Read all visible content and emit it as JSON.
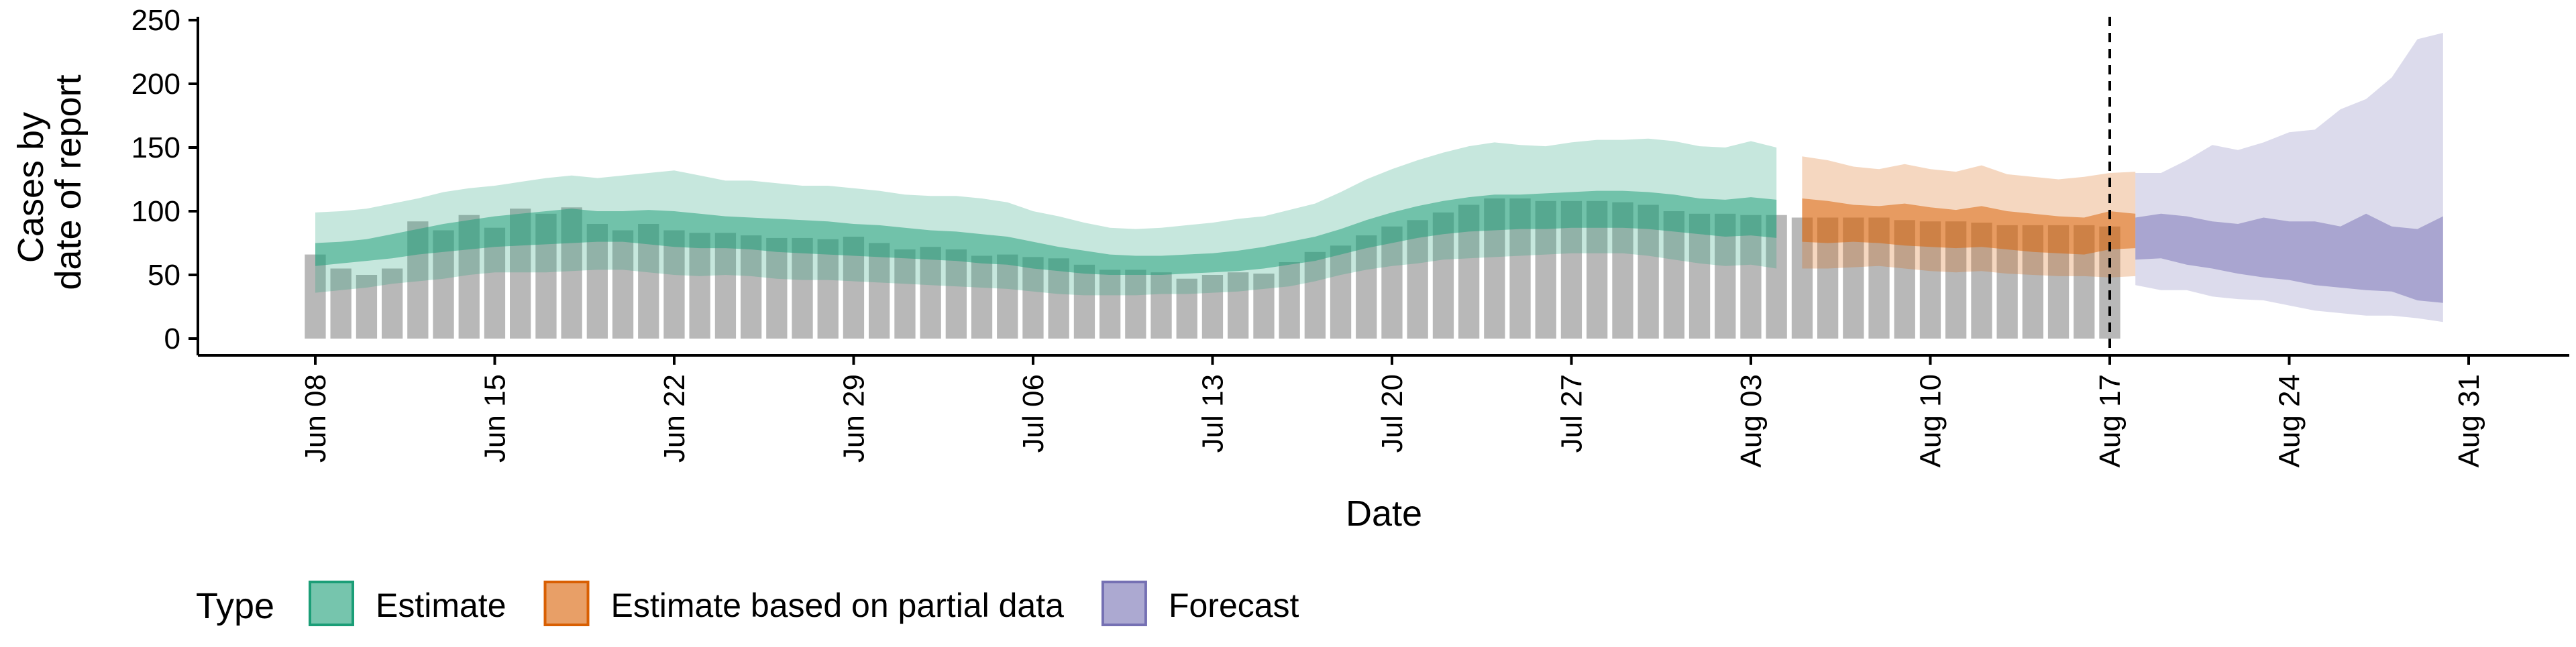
{
  "chart_data": {
    "type": "area",
    "xlabel": "Date",
    "ylabel_lines": [
      "Cases by",
      "date of report"
    ],
    "ylim": [
      0,
      250
    ],
    "y_ticks": [
      0,
      50,
      100,
      150,
      200,
      250
    ],
    "grid": false,
    "x_domain": [
      "2021-06-08",
      "2021-08-31"
    ],
    "x_ticks": [
      {
        "date": "2021-06-08",
        "label": "Jun 08"
      },
      {
        "date": "2021-06-15",
        "label": "Jun 15"
      },
      {
        "date": "2021-06-22",
        "label": "Jun 22"
      },
      {
        "date": "2021-06-29",
        "label": "Jun 29"
      },
      {
        "date": "2021-07-06",
        "label": "Jul 06"
      },
      {
        "date": "2021-07-13",
        "label": "Jul 13"
      },
      {
        "date": "2021-07-20",
        "label": "Jul 20"
      },
      {
        "date": "2021-07-27",
        "label": "Jul 27"
      },
      {
        "date": "2021-08-03",
        "label": "Aug 03"
      },
      {
        "date": "2021-08-10",
        "label": "Aug 10"
      },
      {
        "date": "2021-08-17",
        "label": "Aug 17"
      },
      {
        "date": "2021-08-24",
        "label": "Aug 24"
      },
      {
        "date": "2021-08-31",
        "label": "Aug 31"
      }
    ],
    "vline_date": "2021-08-17",
    "reported_cases": {
      "start_date": "2021-06-08",
      "values": [
        66,
        55,
        50,
        55,
        92,
        85,
        97,
        87,
        102,
        98,
        103,
        90,
        85,
        90,
        85,
        83,
        83,
        81,
        79,
        79,
        78,
        80,
        75,
        70,
        72,
        70,
        65,
        66,
        64,
        63,
        58,
        54,
        54,
        52,
        47,
        50,
        52,
        51,
        60,
        68,
        73,
        81,
        88,
        93,
        99,
        105,
        110,
        110,
        108,
        108,
        108,
        107,
        105,
        100,
        98,
        98,
        97,
        97,
        95,
        95,
        95,
        95,
        93,
        92,
        92,
        91,
        89,
        89,
        89,
        89,
        88
      ]
    },
    "series": [
      {
        "name": "Estimate",
        "type_key": "estimate",
        "start_date": "2021-06-08",
        "outer_upper": [
          99,
          100,
          102,
          106,
          110,
          115,
          118,
          120,
          123,
          126,
          128,
          126,
          128,
          130,
          132,
          128,
          124,
          124,
          122,
          120,
          120,
          118,
          116,
          113,
          112,
          112,
          110,
          107,
          100,
          96,
          91,
          87,
          86,
          87,
          89,
          91,
          94,
          96,
          101,
          106,
          115,
          125,
          133,
          140,
          146,
          151,
          154,
          152,
          151,
          154,
          156,
          156,
          157,
          155,
          151,
          150,
          155,
          150
        ],
        "outer_lower": [
          36,
          38,
          40,
          43,
          45,
          47,
          50,
          52,
          52,
          52,
          53,
          54,
          54,
          52,
          50,
          49,
          50,
          49,
          47,
          46,
          46,
          45,
          44,
          43,
          42,
          41,
          40,
          39,
          37,
          35,
          34,
          34,
          34,
          35,
          35,
          36,
          37,
          39,
          41,
          45,
          50,
          54,
          57,
          59,
          62,
          63,
          64,
          65,
          66,
          67,
          67,
          67,
          65,
          62,
          59,
          57,
          58,
          55
        ],
        "inner_upper": [
          75,
          76,
          78,
          82,
          86,
          90,
          93,
          96,
          98,
          100,
          102,
          100,
          100,
          101,
          100,
          98,
          96,
          95,
          94,
          93,
          92,
          90,
          89,
          87,
          85,
          84,
          82,
          80,
          76,
          72,
          69,
          66,
          65,
          65,
          66,
          67,
          69,
          72,
          76,
          80,
          86,
          93,
          99,
          104,
          108,
          111,
          113,
          113,
          114,
          115,
          116,
          116,
          115,
          113,
          110,
          109,
          111,
          109
        ],
        "inner_lower": [
          57,
          59,
          61,
          63,
          66,
          68,
          70,
          72,
          73,
          74,
          75,
          76,
          76,
          74,
          72,
          71,
          71,
          70,
          68,
          67,
          66,
          65,
          64,
          63,
          62,
          61,
          59,
          58,
          55,
          53,
          51,
          50,
          50,
          50,
          51,
          52,
          53,
          55,
          58,
          61,
          66,
          71,
          75,
          79,
          82,
          84,
          85,
          86,
          86,
          87,
          87,
          87,
          86,
          84,
          82,
          80,
          81,
          79
        ]
      },
      {
        "name": "Estimate based on partial data",
        "type_key": "partial",
        "start_date": "2021-08-05",
        "outer_upper": [
          143,
          140,
          135,
          133,
          137,
          133,
          131,
          136,
          129,
          127,
          125,
          127,
          130,
          131
        ],
        "outer_lower": [
          55,
          55,
          56,
          57,
          55,
          53,
          52,
          53,
          51,
          50,
          49,
          49,
          48,
          49
        ],
        "inner_upper": [
          110,
          108,
          105,
          104,
          106,
          103,
          101,
          104,
          100,
          98,
          96,
          95,
          100,
          98
        ],
        "inner_lower": [
          76,
          75,
          76,
          75,
          73,
          72,
          71,
          72,
          70,
          68,
          67,
          66,
          70,
          71
        ]
      },
      {
        "name": "Forecast",
        "type_key": "forecast",
        "start_date": "2021-08-18",
        "outer_upper": [
          130,
          130,
          140,
          152,
          148,
          154,
          162,
          164,
          180,
          188,
          205,
          235,
          240
        ],
        "outer_lower": [
          42,
          38,
          38,
          33,
          31,
          30,
          26,
          22,
          20,
          18,
          18,
          16,
          13
        ],
        "inner_upper": [
          95,
          98,
          96,
          92,
          90,
          95,
          92,
          92,
          88,
          98,
          88,
          86,
          96
        ],
        "inner_lower": [
          62,
          63,
          58,
          55,
          51,
          48,
          46,
          42,
          40,
          38,
          37,
          30,
          28
        ]
      }
    ],
    "legend": {
      "title": "Type",
      "position": "bottom",
      "items": [
        {
          "label": "Estimate",
          "type_key": "estimate"
        },
        {
          "label": "Estimate based on partial data",
          "type_key": "partial"
        },
        {
          "label": "Forecast",
          "type_key": "forecast"
        }
      ]
    },
    "colors": {
      "estimate": "#1b9e77",
      "partial": "#d95f02",
      "forecast": "#7570b3",
      "bars": "#b8b8b8",
      "vline": "#000000"
    }
  }
}
